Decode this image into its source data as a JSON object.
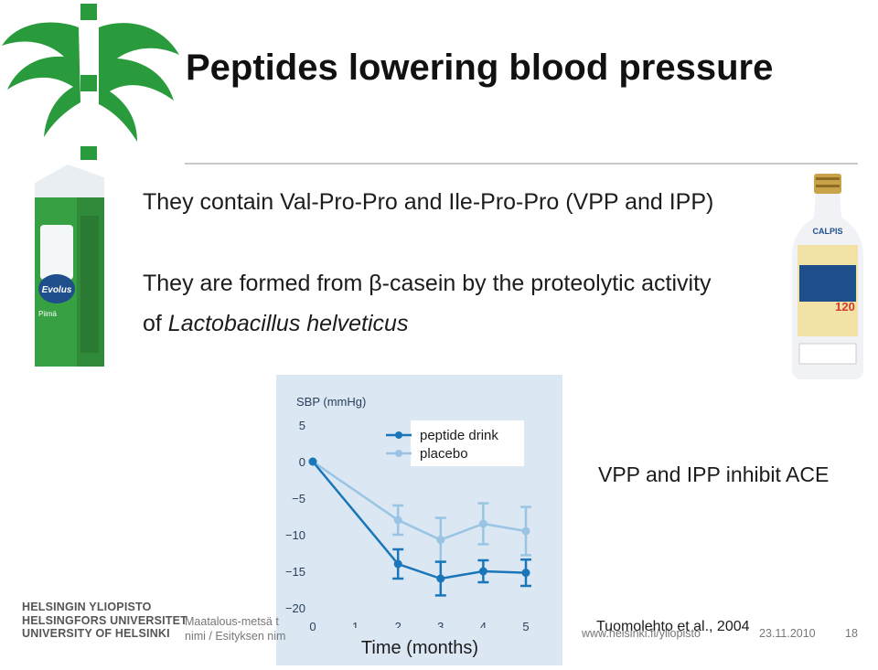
{
  "slide": {
    "title": "Peptides lowering blood pressure",
    "bullet1": "They contain Val-Pro-Pro and Ile-Pro-Pro (VPP and IPP)",
    "bullet2_line1": "They are formed from β-casein by the proteolytic activity",
    "bullet2_of": "of ",
    "bullet2_species": "Lactobacillus helveticus",
    "ace_note": "VPP and IPP inhibit ACE",
    "citation": "Tuomolehto et al., 2004"
  },
  "university": {
    "line1": "HELSINGIN YLIOPISTO",
    "line2": "HELSINGFORS UNIVERSITET",
    "line3": "UNIVERSITY OF HELSINKI"
  },
  "footer": {
    "left_line1": "Maatalous-metsä t",
    "left_line2": "nimi / Esityksen nim",
    "url": "www.helsinki.fi/yliopisto",
    "date": "23.11.2010",
    "page": "18"
  },
  "images": {
    "milk_carton_brand": "Evolus",
    "milk_carton_label": "Piimä",
    "bottle_brand": "CALPIS",
    "bottle_number": "120"
  },
  "colors": {
    "logo_green": "#2a9b3c",
    "chart_bg": "#dbe7f3",
    "peptide_drink": "#1a76b8",
    "placebo": "#9ac4e4"
  },
  "chart_data": {
    "type": "line",
    "ylabel": "SBP (mmHg)",
    "xlabel": "Time (months)",
    "x": [
      0,
      1,
      2,
      3,
      4,
      5
    ],
    "yticks": [
      5,
      0,
      -5,
      -10,
      -15,
      -20
    ],
    "ylim": [
      -20,
      5
    ],
    "xlim": [
      0,
      5
    ],
    "legend_position": "top-right",
    "series": [
      {
        "name": "peptide drink",
        "color": "#1a76b8",
        "x": [
          0,
          2,
          3,
          4,
          5
        ],
        "y": [
          0,
          -14,
          -16,
          -15,
          -15.2
        ],
        "error": [
          0,
          2,
          2.3,
          1.5,
          1.8
        ]
      },
      {
        "name": "placebo",
        "color": "#9ac4e4",
        "x": [
          0,
          2,
          3,
          4,
          5
        ],
        "y": [
          0,
          -8,
          -10.7,
          -8.5,
          -9.5
        ],
        "error": [
          0,
          2,
          3,
          2.8,
          3.3
        ]
      }
    ]
  }
}
